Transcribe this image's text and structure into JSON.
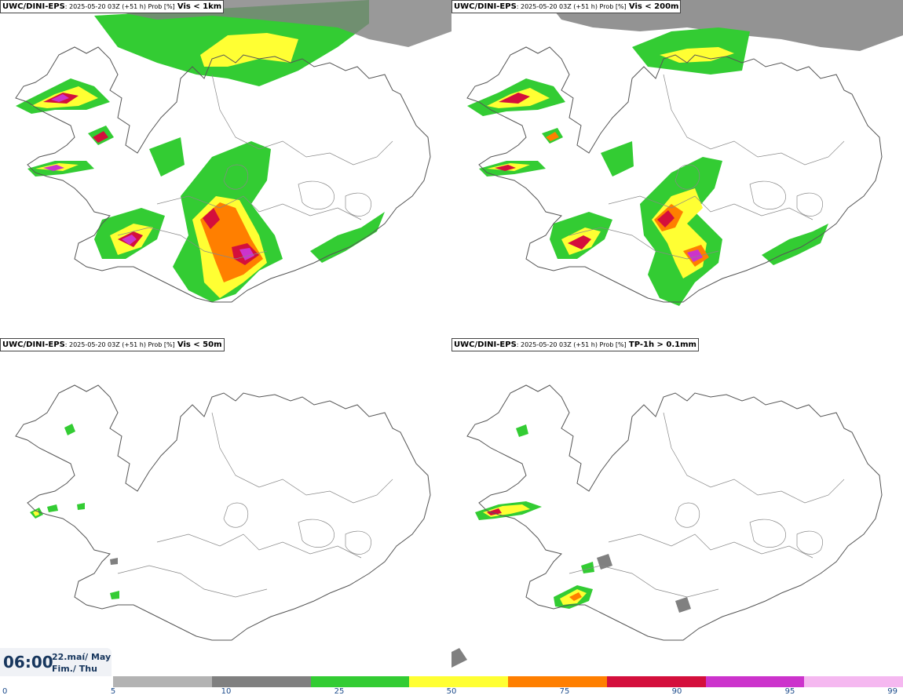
{
  "panels": [
    {
      "model": "UWC/DINI-EPS",
      "meta": ": 2025-05-20 03Z (+51 h) Prob [%]",
      "variable": "Vis < 1km"
    },
    {
      "model": "UWC/DINI-EPS",
      "meta": ": 2025-05-20 03Z (+51 h) Prob [%]",
      "variable": "Vis < 200m"
    },
    {
      "model": "UWC/DINI-EPS",
      "meta": ": 2025-05-20 03Z (+51 h) Prob [%]",
      "variable": "Vis < 50m"
    },
    {
      "model": "UWC/DINI-EPS",
      "meta": ": 2025-05-20 03Z (+51 h) Prob [%]",
      "variable": "TP-1h > 0.1mm"
    }
  ],
  "time": {
    "main": "06:00",
    "date": "22.maí/ May",
    "day": "Fim./ Thu"
  },
  "colorbar": {
    "ticks": [
      "0",
      "5",
      "10",
      "25",
      "50",
      "75",
      "90",
      "95",
      "99"
    ],
    "colors": [
      "#b3b3b3",
      "#808080",
      "#33cc33",
      "#ffff33",
      "#ff7f00",
      "#d40f3c",
      "#cc33cc",
      "#f5b8f0"
    ]
  }
}
